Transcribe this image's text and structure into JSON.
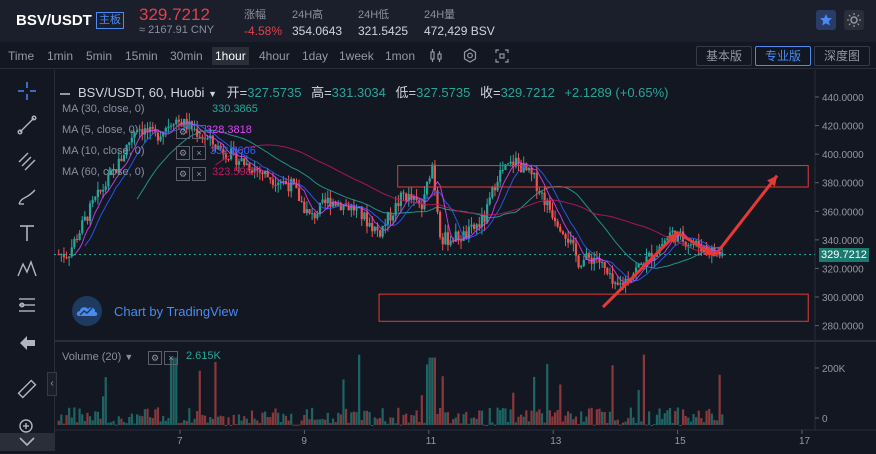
{
  "header": {
    "pair": "BSV/USDT",
    "main_badge": "主板",
    "price": "329.7212",
    "cny": "≈ 2167.91 CNY",
    "stats": [
      {
        "label": "涨幅",
        "value": "-4.58%",
        "color": "red"
      },
      {
        "label": "24H高",
        "value": "354.0643",
        "color": "normal"
      },
      {
        "label": "24H低",
        "value": "321.5425",
        "color": "normal"
      },
      {
        "label": "24H量",
        "value": "472,429 BSV",
        "color": "normal"
      }
    ]
  },
  "toolbar": {
    "intervals": [
      "Time",
      "1min",
      "5min",
      "15min",
      "30min",
      "1hour",
      "4hour",
      "1day",
      "1week",
      "1mon"
    ],
    "active_interval": "1hour",
    "views": [
      "基本版",
      "专业版",
      "深度图"
    ],
    "active_view": "专业版"
  },
  "legend": {
    "symbol": "BSV/USDT, 60, Huobi",
    "open_label": "开=",
    "open": "327.5735",
    "high_label": "高=",
    "high": "331.3034",
    "low_label": "低=",
    "low": "327.5735",
    "close_label": "收=",
    "close": "329.7212",
    "change": "+2.1289 (+0.65%)",
    "mas": [
      {
        "label": "MA (30, close, 0)",
        "value": "330.3865",
        "color": "#26a69a"
      },
      {
        "label": "MA (5, close, 0)",
        "value": "328.3818",
        "color": "#e040fb"
      },
      {
        "label": "MA (10, close, 0)",
        "value": "332.8606",
        "color": "#2962ff"
      },
      {
        "label": "MA (60, close, 0)",
        "value": "323.5987",
        "color": "#c2185b"
      }
    ]
  },
  "watermark": "Chart by TradingView",
  "volume": {
    "label": "Volume (20)",
    "value": "2.615K",
    "axis": [
      "200K",
      "0"
    ]
  },
  "colors": {
    "up": "#26a69a",
    "down": "#ef5350",
    "background": "#131722",
    "accent": "#4b8af0"
  },
  "chart_data": {
    "type": "candlestick",
    "y_axis": [
      "440.0000",
      "420.0000",
      "400.0000",
      "380.0000",
      "360.0000",
      "340.0000",
      "320.0000",
      "300.0000",
      "280.0000"
    ],
    "ylim": [
      270,
      450
    ],
    "x_axis": [
      "7",
      "9",
      "11",
      "13",
      "15",
      "17"
    ],
    "last_price": "329.7212",
    "close_path": [
      {
        "day": 5.2,
        "price": 330
      },
      {
        "day": 5.6,
        "price": 365
      },
      {
        "day": 6.0,
        "price": 392
      },
      {
        "day": 6.3,
        "price": 420
      },
      {
        "day": 6.6,
        "price": 412
      },
      {
        "day": 6.9,
        "price": 425
      },
      {
        "day": 7.2,
        "price": 418
      },
      {
        "day": 7.6,
        "price": 405
      },
      {
        "day": 8.0,
        "price": 395
      },
      {
        "day": 8.4,
        "price": 385
      },
      {
        "day": 8.8,
        "price": 378
      },
      {
        "day": 9.1,
        "price": 355
      },
      {
        "day": 9.4,
        "price": 368
      },
      {
        "day": 9.8,
        "price": 362
      },
      {
        "day": 10.2,
        "price": 345
      },
      {
        "day": 10.6,
        "price": 372
      },
      {
        "day": 10.9,
        "price": 362
      },
      {
        "day": 11.05,
        "price": 395
      },
      {
        "day": 11.2,
        "price": 340
      },
      {
        "day": 11.6,
        "price": 343
      },
      {
        "day": 11.9,
        "price": 355
      },
      {
        "day": 12.1,
        "price": 385
      },
      {
        "day": 12.4,
        "price": 395
      },
      {
        "day": 12.7,
        "price": 382
      },
      {
        "day": 12.9,
        "price": 365
      },
      {
        "day": 13.2,
        "price": 345
      },
      {
        "day": 13.4,
        "price": 325
      },
      {
        "day": 13.7,
        "price": 328
      },
      {
        "day": 14.0,
        "price": 305
      },
      {
        "day": 14.3,
        "price": 318
      },
      {
        "day": 14.6,
        "price": 330
      },
      {
        "day": 14.9,
        "price": 345
      },
      {
        "day": 15.2,
        "price": 338
      },
      {
        "day": 15.5,
        "price": 333
      },
      {
        "day": 15.7,
        "price": 329.72
      }
    ],
    "drawings": {
      "resistance_box": {
        "from_day": 10.5,
        "to_day": 17.1,
        "low": 377,
        "high": 392
      },
      "support_box": {
        "from_day": 10.2,
        "to_day": 17.1,
        "low": 283,
        "high": 302
      },
      "arrows": [
        {
          "from": [
            13.8,
            293
          ],
          "to": [
            15.0,
            345
          ]
        },
        {
          "from": [
            15.0,
            345
          ],
          "to": [
            15.6,
            329
          ]
        },
        {
          "from": [
            15.6,
            329
          ],
          "to": [
            16.6,
            385
          ]
        }
      ]
    }
  }
}
